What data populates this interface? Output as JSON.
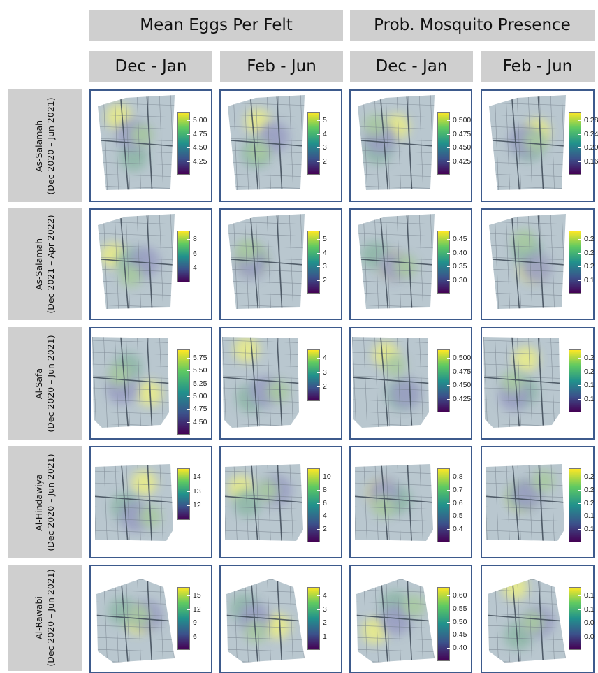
{
  "header": {
    "groups": [
      {
        "label": "Mean Eggs Per Felt"
      },
      {
        "label": "Prob. Mosquito Presence"
      }
    ],
    "periods": [
      "Dec - Jan",
      "Feb - Jun",
      "Dec - Jan",
      "Feb - Jun"
    ]
  },
  "rows": [
    {
      "site": "As-Salamah",
      "dates": "(Dec 2020 – Jun 2021)",
      "panels": [
        {
          "ticks": [
            "5.00",
            "4.75",
            "4.50",
            "4.25"
          ],
          "map": "grid"
        },
        {
          "ticks": [
            "5",
            "4",
            "3",
            "2"
          ],
          "map": "grid"
        },
        {
          "ticks": [
            "0.500",
            "0.475",
            "0.450",
            "0.425"
          ],
          "map": "grid"
        },
        {
          "ticks": [
            "0.28",
            "0.24",
            "0.20",
            "0.16"
          ],
          "map": "grid"
        }
      ]
    },
    {
      "site": "As-Salamah",
      "dates": "(Dec 2021 – Apr 2022)",
      "panels": [
        {
          "ticks": [
            "8",
            "6",
            "4"
          ],
          "map": "grid"
        },
        {
          "ticks": [
            "5",
            "4",
            "3",
            "2"
          ],
          "map": "grid"
        },
        {
          "ticks": [
            "0.45",
            "0.40",
            "0.35",
            "0.30"
          ],
          "map": "grid"
        },
        {
          "ticks": [
            "0.2",
            "0.2",
            "0.2",
            "0.1"
          ],
          "map": "grid"
        }
      ]
    },
    {
      "site": "Al-Safa",
      "dates": "(Dec 2020 – Jun 2021)",
      "panels": [
        {
          "ticks": [
            "5.75",
            "5.50",
            "5.25",
            "5.00",
            "4.75",
            "4.50"
          ],
          "map": "safa"
        },
        {
          "ticks": [
            "4",
            "3",
            "2"
          ],
          "map": "safa"
        },
        {
          "ticks": [
            "0.500",
            "0.475",
            "0.450",
            "0.425"
          ],
          "map": "safa"
        },
        {
          "ticks": [
            "0.2",
            "0.2",
            "0.1",
            "0.1"
          ],
          "map": "safa"
        }
      ]
    },
    {
      "site": "Al-Hindawiya",
      "dates": "(Dec 2020 – Jun 2021)",
      "panels": [
        {
          "ticks": [
            "14",
            "13",
            "12"
          ],
          "map": "hind"
        },
        {
          "ticks": [
            "10",
            "8",
            "6",
            "4",
            "2"
          ],
          "map": "hind"
        },
        {
          "ticks": [
            "0.8",
            "0.7",
            "0.6",
            "0.5",
            "0.4"
          ],
          "map": "hind"
        },
        {
          "ticks": [
            "0.2",
            "0.2",
            "0.2",
            "0.1",
            "0.1"
          ],
          "map": "hind"
        }
      ]
    },
    {
      "site": "Al-Rawabi",
      "dates": "(Dec 2020 – Jun 2021)",
      "panels": [
        {
          "ticks": [
            "15",
            "12",
            "9",
            "6"
          ],
          "map": "rawabi"
        },
        {
          "ticks": [
            "4",
            "3",
            "2",
            "1"
          ],
          "map": "rawabi"
        },
        {
          "ticks": [
            "0.60",
            "0.55",
            "0.50",
            "0.45",
            "0.40"
          ],
          "map": "rawabi"
        },
        {
          "ticks": [
            "0.1",
            "0.1",
            "0.0",
            "0.0"
          ],
          "map": "rawabi"
        }
      ]
    }
  ],
  "colors": {
    "header_bg": "#cfcfcf",
    "panel_border": "#3d5a8c",
    "colorbar": [
      "#fde725",
      "#5ec962",
      "#21918c",
      "#3b528b",
      "#440154"
    ]
  }
}
